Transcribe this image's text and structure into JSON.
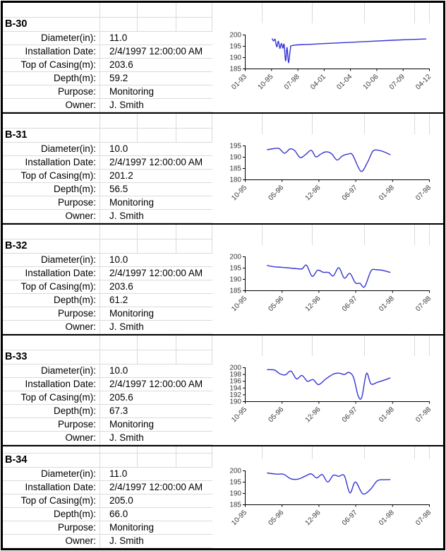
{
  "labels": {
    "diameter": "Diameter(in):",
    "installation": "Installation Date:",
    "top_of_casing": "Top of Casing(m):",
    "depth": "Depth(m):",
    "purpose": "Purpose:",
    "owner": "Owner:"
  },
  "colors": {
    "series_line": "#3434d4",
    "axis": "#000000",
    "grid": "#dadada"
  },
  "wells": [
    {
      "name": "B-30",
      "diameter": "11.0",
      "installation_date": "2/4/1997 12:00:00 AM",
      "top_of_casing": "203.6",
      "depth": "59.2",
      "purpose": "Monitoring",
      "owner": "J. Smith"
    },
    {
      "name": "B-31",
      "diameter": "10.0",
      "installation_date": "2/4/1997 12:00:00 AM",
      "top_of_casing": "201.2",
      "depth": "56.5",
      "purpose": "Monitoring",
      "owner": "J. Smith"
    },
    {
      "name": "B-32",
      "diameter": "10.0",
      "installation_date": "2/4/1997 12:00:00 AM",
      "top_of_casing": "203.6",
      "depth": "61.2",
      "purpose": "Monitoring",
      "owner": "J. Smith"
    },
    {
      "name": "B-33",
      "diameter": "10.0",
      "installation_date": "2/4/1997 12:00:00 AM",
      "top_of_casing": "205.6",
      "depth": "67.3",
      "purpose": "Monitoring",
      "owner": "J. Smith"
    },
    {
      "name": "B-34",
      "diameter": "11.0",
      "installation_date": "2/4/1997 12:00:00 AM",
      "top_of_casing": "205.0",
      "depth": "66.0",
      "purpose": "Monitoring",
      "owner": "J. Smith"
    }
  ],
  "chart_data": [
    {
      "well": "B-30",
      "type": "line",
      "ylim": [
        185,
        200
      ],
      "y_ticks": [
        185,
        190,
        195,
        200
      ],
      "x_labels": [
        "01-93",
        "10-95",
        "07-98",
        "04-01",
        "01-04",
        "10-06",
        "07-09",
        "04-12"
      ],
      "points": [
        [
          0.147,
          198.3
        ],
        [
          0.156,
          197.2
        ],
        [
          0.164,
          197.9
        ],
        [
          0.173,
          194.6
        ],
        [
          0.182,
          197.1
        ],
        [
          0.19,
          193.9
        ],
        [
          0.198,
          196.1
        ],
        [
          0.206,
          194.0
        ],
        [
          0.213,
          195.7
        ],
        [
          0.221,
          188.4
        ],
        [
          0.229,
          194.3
        ],
        [
          0.237,
          187.6
        ],
        [
          0.247,
          193.6
        ],
        [
          0.258,
          195.2
        ],
        [
          0.35,
          195.7
        ],
        [
          0.5,
          196.3
        ],
        [
          0.65,
          196.9
        ],
        [
          0.8,
          197.5
        ],
        [
          0.985,
          198.1
        ]
      ]
    },
    {
      "well": "B-31",
      "type": "line",
      "ylim": [
        180,
        195
      ],
      "y_ticks": [
        180,
        185,
        190,
        195
      ],
      "x_labels": [
        "10-95",
        "05-96",
        "12-96",
        "06-97",
        "01-98",
        "07-98"
      ],
      "points": [
        [
          0.12,
          193.1
        ],
        [
          0.155,
          193.6
        ],
        [
          0.185,
          193.7
        ],
        [
          0.215,
          191.6
        ],
        [
          0.245,
          193.5
        ],
        [
          0.27,
          192.8
        ],
        [
          0.3,
          189.7
        ],
        [
          0.33,
          191.0
        ],
        [
          0.36,
          192.9
        ],
        [
          0.385,
          190.0
        ],
        [
          0.41,
          191.1
        ],
        [
          0.44,
          192.2
        ],
        [
          0.47,
          191.4
        ],
        [
          0.5,
          188.6
        ],
        [
          0.53,
          190.4
        ],
        [
          0.56,
          191.2
        ],
        [
          0.585,
          190.8
        ],
        [
          0.63,
          183.6
        ],
        [
          0.665,
          187.5
        ],
        [
          0.695,
          192.5
        ],
        [
          0.725,
          192.9
        ],
        [
          0.755,
          192.2
        ],
        [
          0.79,
          190.9
        ]
      ]
    },
    {
      "well": "B-32",
      "type": "line",
      "ylim": [
        185,
        200
      ],
      "y_ticks": [
        185,
        190,
        195,
        200
      ],
      "x_labels": [
        "10-95",
        "05-96",
        "12-96",
        "06-97",
        "01-98",
        "07-98"
      ],
      "points": [
        [
          0.12,
          196.0
        ],
        [
          0.16,
          195.4
        ],
        [
          0.2,
          195.2
        ],
        [
          0.24,
          194.9
        ],
        [
          0.28,
          194.6
        ],
        [
          0.31,
          194.5
        ],
        [
          0.335,
          196.1
        ],
        [
          0.365,
          191.2
        ],
        [
          0.395,
          193.9
        ],
        [
          0.425,
          193.0
        ],
        [
          0.455,
          192.9
        ],
        [
          0.48,
          191.4
        ],
        [
          0.51,
          195.0
        ],
        [
          0.54,
          190.4
        ],
        [
          0.57,
          192.5
        ],
        [
          0.6,
          188.3
        ],
        [
          0.625,
          188.1
        ],
        [
          0.65,
          186.6
        ],
        [
          0.685,
          193.6
        ],
        [
          0.715,
          194.1
        ],
        [
          0.75,
          193.8
        ],
        [
          0.79,
          192.9
        ]
      ]
    },
    {
      "well": "B-33",
      "type": "line",
      "ylim": [
        190,
        200
      ],
      "y_ticks": [
        190,
        192,
        194,
        196,
        198,
        200
      ],
      "x_labels": [
        "10-95",
        "05-96",
        "12-96",
        "06-97",
        "01-98",
        "07-98"
      ],
      "points": [
        [
          0.12,
          199.3
        ],
        [
          0.16,
          199.2
        ],
        [
          0.19,
          198.1
        ],
        [
          0.22,
          197.8
        ],
        [
          0.25,
          198.9
        ],
        [
          0.28,
          196.6
        ],
        [
          0.31,
          197.6
        ],
        [
          0.34,
          195.9
        ],
        [
          0.37,
          196.4
        ],
        [
          0.4,
          194.9
        ],
        [
          0.44,
          196.6
        ],
        [
          0.48,
          198.0
        ],
        [
          0.51,
          198.3
        ],
        [
          0.54,
          197.9
        ],
        [
          0.565,
          198.5
        ],
        [
          0.59,
          197.0
        ],
        [
          0.615,
          191.6
        ],
        [
          0.635,
          191.2
        ],
        [
          0.66,
          198.2
        ],
        [
          0.685,
          195.1
        ],
        [
          0.72,
          195.6
        ],
        [
          0.755,
          196.2
        ],
        [
          0.79,
          196.9
        ]
      ]
    },
    {
      "well": "B-34",
      "type": "line",
      "ylim": [
        185,
        200
      ],
      "y_ticks": [
        185,
        190,
        195,
        200
      ],
      "x_labels": [
        "10-95",
        "05-96",
        "12-96",
        "06-97",
        "01-98",
        "07-98"
      ],
      "points": [
        [
          0.12,
          198.9
        ],
        [
          0.17,
          198.4
        ],
        [
          0.21,
          198.3
        ],
        [
          0.25,
          196.3
        ],
        [
          0.29,
          196.2
        ],
        [
          0.33,
          197.6
        ],
        [
          0.36,
          198.5
        ],
        [
          0.39,
          196.7
        ],
        [
          0.42,
          198.2
        ],
        [
          0.45,
          194.9
        ],
        [
          0.48,
          197.9
        ],
        [
          0.51,
          197.4
        ],
        [
          0.54,
          197.7
        ],
        [
          0.57,
          190.1
        ],
        [
          0.6,
          194.9
        ],
        [
          0.64,
          189.7
        ],
        [
          0.68,
          191.5
        ],
        [
          0.72,
          195.5
        ],
        [
          0.76,
          195.9
        ],
        [
          0.79,
          196.0
        ]
      ]
    }
  ]
}
